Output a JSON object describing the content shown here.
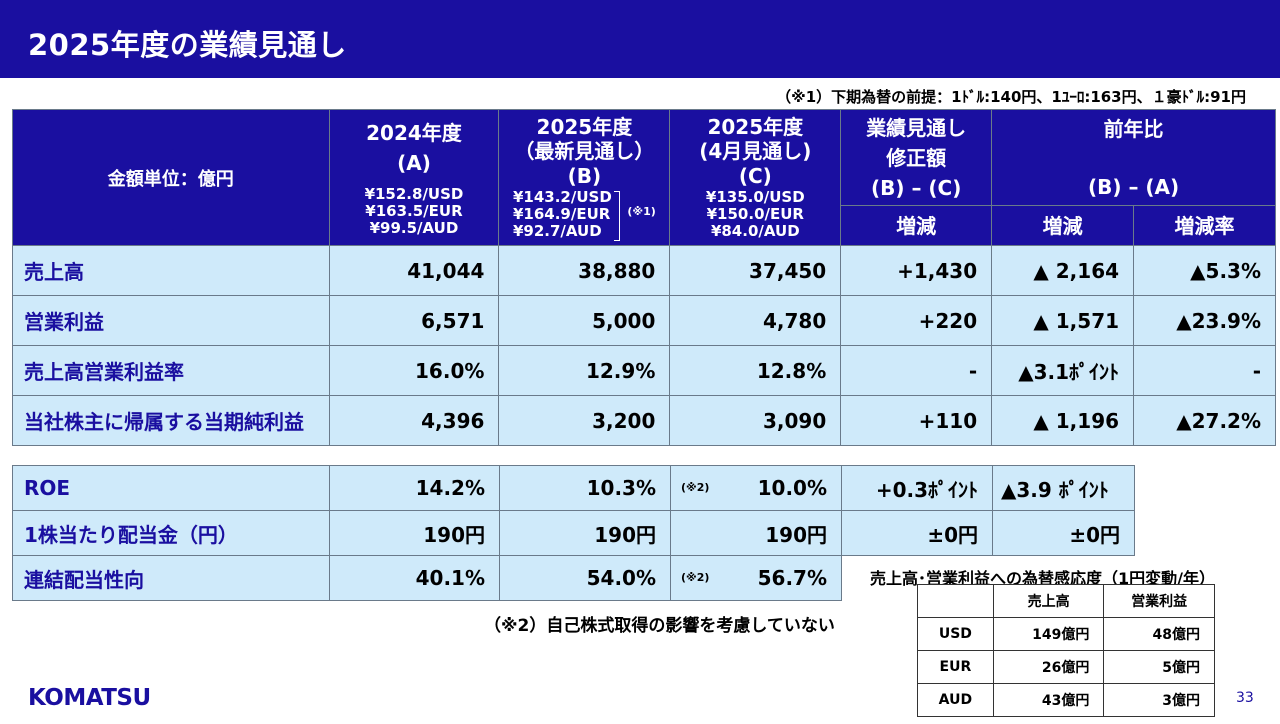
{
  "title": "2025年度の業績見通し",
  "fx_note": "（※1）下期為替の前提：1ﾄﾞﾙ:140円、1ﾕｰﾛ:163円、１豪ﾄﾞﾙ:91円",
  "header": {
    "unit": "金額単位：億円",
    "col_a": {
      "title": "2024年度",
      "sub": "(A)",
      "rates": [
        "¥152.8/USD",
        "¥163.5/EUR",
        "¥99.5/AUD"
      ]
    },
    "col_b": {
      "title": "2025年度",
      "title2": "（最新見通し）",
      "sub": "(B)",
      "rates": [
        "¥143.2/USD",
        "¥164.9/EUR",
        "¥92.7/AUD"
      ],
      "note": "(※1)"
    },
    "col_c": {
      "title": "2025年度",
      "title2": "(4月見通し)",
      "sub": "(C)",
      "rates": [
        "¥135.0/USD",
        "¥150.0/EUR",
        "¥84.0/AUD"
      ]
    },
    "col_rev": {
      "title": "業績見通し",
      "title2": "修正額",
      "sub": "(B) – (C)",
      "change": "増減"
    },
    "col_yoy": {
      "title": "前年比",
      "sub": "(B) – (A)",
      "change": "増減",
      "rate": "増減率"
    }
  },
  "rows": [
    {
      "label": "売上高",
      "a": "41,044",
      "b": "38,880",
      "c": "37,450",
      "rev": "+1,430",
      "yoy": "▲ 2,164",
      "yoy_rate": "▲5.3%"
    },
    {
      "label": "営業利益",
      "a": "6,571",
      "b": "5,000",
      "c": "4,780",
      "rev": "+220",
      "yoy": "▲ 1,571",
      "yoy_rate": "▲23.9%"
    },
    {
      "label": "売上高営業利益率",
      "a": "16.0%",
      "b": "12.9%",
      "c": "12.8%",
      "rev": "-",
      "yoy": "▲3.1ﾎﾟｲﾝﾄ",
      "yoy_rate": "-"
    },
    {
      "label": "当社株主に帰属する当期純利益",
      "a": "4,396",
      "b": "3,200",
      "c": "3,090",
      "rev": "+110",
      "yoy": "▲ 1,196",
      "yoy_rate": "▲27.2%"
    }
  ],
  "rows2": [
    {
      "label": "ROE",
      "a": "14.2%",
      "b": "10.3%",
      "c_note": "(※2)",
      "c": "10.0%",
      "rev": "+0.3ﾎﾟｲﾝﾄ",
      "yoy": "▲3.9 ﾎﾟｲﾝﾄ"
    },
    {
      "label": "1株当たり配当金（円）",
      "a": "190円",
      "b": "190円",
      "c_note": "",
      "c": "190円",
      "rev": "±0円",
      "yoy": "±0円"
    },
    {
      "label": "連結配当性向",
      "a": "40.1%",
      "b": "54.0%",
      "c_note": "(※2)",
      "c": "56.7%",
      "rev": "",
      "yoy": ""
    }
  ],
  "footnote2": "（※2）自己株式取得の影響を考慮していない",
  "sensitivity": {
    "title": "売上高･営業利益への為替感応度（1円変動/年）",
    "headers": [
      "",
      "売上高",
      "営業利益"
    ],
    "rows": [
      {
        "cur": "USD",
        "sales": "149億円",
        "op": "48億円"
      },
      {
        "cur": "EUR",
        "sales": "26億円",
        "op": "5億円"
      },
      {
        "cur": "AUD",
        "sales": "43億円",
        "op": "3億円"
      }
    ]
  },
  "logo": "KOMATSU",
  "page_number": "33",
  "colors": {
    "brand_blue": "#1a0fa0",
    "row_bg": "#cfeafa"
  }
}
